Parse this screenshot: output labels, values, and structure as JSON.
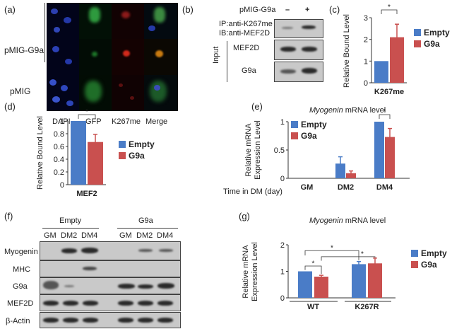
{
  "colors": {
    "empty": "#4a7cc7",
    "g9a": "#c9504f"
  },
  "panel_a": {
    "label": "(a)",
    "rows": [
      "pMIG-G9a",
      "pMIG"
    ],
    "cols": [
      "DAPI",
      "GFP",
      "K267me",
      "Merge"
    ]
  },
  "panel_b": {
    "label": "(b)",
    "header": "pMIG-G9a",
    "minus": "–",
    "plus": "+",
    "ip_line1": "IP:anti-K267me",
    "ip_line2": "IB:anti-MEF2D",
    "input_label": "Input",
    "rows": [
      "MEF2D",
      "G9a"
    ]
  },
  "panel_c": {
    "label": "(c)"
  },
  "panel_d": {
    "label": "(d)"
  },
  "panel_e": {
    "label": "(e)",
    "title_italic": "Myogenin",
    "title_rest": " mRNA level",
    "time_label": "Time in DM (day)"
  },
  "panel_f": {
    "label": "(f)",
    "groups": [
      "Empty",
      "G9a"
    ],
    "lanes": [
      "GM",
      "DM2",
      "DM4",
      "GM",
      "DM2",
      "DM4"
    ],
    "rows": [
      "Myogenin",
      "MHC",
      "G9a",
      "MEF2D",
      "β-Actin"
    ]
  },
  "panel_g": {
    "label": "(g)",
    "title_italic": "Myogenin",
    "title_rest": " mRNA level"
  },
  "chart_data": [
    {
      "id": "c",
      "type": "bar",
      "categories": [
        "K267me"
      ],
      "series": [
        {
          "name": "Empty",
          "values": [
            1.0
          ],
          "errors": [
            0.0
          ]
        },
        {
          "name": "G9a",
          "values": [
            2.1
          ],
          "errors": [
            0.6
          ]
        }
      ],
      "ylabel": "Relative Bound Level",
      "ylim": [
        0,
        3
      ],
      "yticks": [
        "0",
        "1",
        "2",
        "3"
      ],
      "significance": "*",
      "legend": "right"
    },
    {
      "id": "d",
      "type": "bar",
      "categories": [
        "MEF2"
      ],
      "series": [
        {
          "name": "Empty",
          "values": [
            1.0
          ],
          "errors": [
            0.0
          ]
        },
        {
          "name": "G9a",
          "values": [
            0.67
          ],
          "errors": [
            0.12
          ]
        }
      ],
      "ylabel": "Relative Bound Level",
      "ylim": [
        0,
        1
      ],
      "yticks": [
        "0",
        "0.2",
        "0.4",
        "0.6",
        "0.8",
        "1"
      ],
      "significance": "*",
      "legend": "right"
    },
    {
      "id": "e",
      "type": "bar",
      "categories": [
        "GM",
        "DM2",
        "DM4"
      ],
      "series": [
        {
          "name": "Empty",
          "values": [
            0.0,
            0.26,
            1.0
          ],
          "errors": [
            0.0,
            0.12,
            0.0
          ]
        },
        {
          "name": "G9a",
          "values": [
            0.0,
            0.09,
            0.73
          ],
          "errors": [
            0.0,
            0.04,
            0.15
          ]
        }
      ],
      "title": "Myogenin mRNA level",
      "ylabel": "Relative mRNA Expression Level",
      "xlabel": "Time in DM (day)",
      "ylim": [
        0,
        1
      ],
      "yticks": [
        "0",
        "0.5",
        "1"
      ],
      "significance": "*",
      "legend": "top-left"
    },
    {
      "id": "g",
      "type": "bar",
      "categories": [
        "WT",
        "K267R"
      ],
      "series": [
        {
          "name": "Empty",
          "values": [
            1.0,
            1.27
          ],
          "errors": [
            0.0,
            0.1
          ]
        },
        {
          "name": "G9a",
          "values": [
            0.8,
            1.3
          ],
          "errors": [
            0.05,
            0.2
          ]
        }
      ],
      "title": "Myogenin mRNA level",
      "ylabel": "Relative mRNA Expression Level",
      "ylim": [
        0,
        2
      ],
      "yticks": [
        "0",
        "1",
        "2"
      ],
      "significance": "*",
      "legend": "right"
    }
  ]
}
